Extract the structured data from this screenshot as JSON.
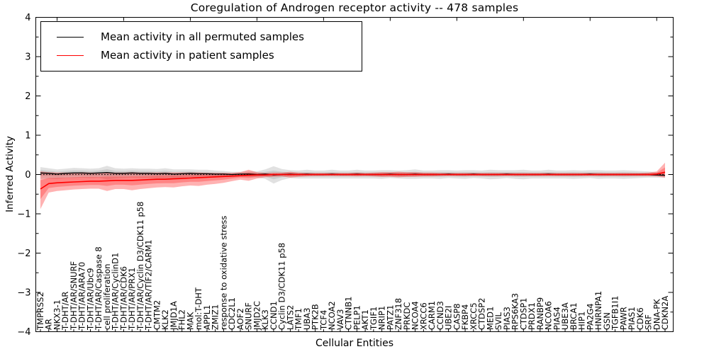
{
  "chart_data": {
    "type": "line",
    "title": "Coregulation of Androgen receptor activity -- 478 samples",
    "xlabel": "Cellular Entities",
    "ylabel": "Inferred Activity",
    "ylim": [
      -4,
      4
    ],
    "ytick_labels": [
      "−4",
      "−3",
      "−2",
      "−1",
      "0",
      "1",
      "2",
      "3",
      "4"
    ],
    "yticks": [
      -4,
      -3,
      -2,
      -1,
      0,
      1,
      2,
      3,
      4
    ],
    "minor_ytick_step": 0.5,
    "grid": false,
    "legend_position": "upper-left",
    "legend": [
      {
        "label": "Mean activity in all permuted samples",
        "color": "#000000"
      },
      {
        "label": "Mean activity in patient samples",
        "color": "#ff0000"
      }
    ],
    "zero_line": {
      "y": 0,
      "style": "dotted",
      "color": "#000000"
    },
    "band_inner_scale": 0.5,
    "colors": {
      "permuted_line": "#000000",
      "patient_line": "#ff0000",
      "permuted_band": "#777777",
      "patient_band": "#ff0000"
    },
    "categories": [
      "TMPRSS2",
      "AR",
      "NKX3-1",
      "T-DHT/AR",
      "T-DHT/AR/SNURF",
      "T-DHT/AR/ARA70",
      "T-DHT/AR/Ubc9",
      "T-DHT/AR/Caspase 8",
      "cell proliferation",
      "T-DHT/AR/CyclinD1",
      "T-DHT/AR/CDK6",
      "T-DHT/AR/PRX1",
      "T-DHT/AR/Cyclin D3/CDK11 p58",
      "T-DHT/AR/TIF2/CARM1",
      "CMTM2",
      "KLK2",
      "JMJD1A",
      "FHL2",
      "MAK",
      "mol:T-DHT",
      "APPL1",
      "ZMIZ1",
      "response to oxidative stress",
      "CDC2L1",
      "AOF2",
      "SNURF",
      "JMJD2C",
      "KLK3",
      "CCND1",
      "Cyclin D3/CDK11 p58",
      "LATS2",
      "TMF1",
      "UBA3",
      "PTK2B",
      "TCF4",
      "NCOA2",
      "VAV3",
      "CTNNB1",
      "PELP1",
      "AKT1",
      "TGIF1",
      "NRIP1",
      "PATZ1",
      "ZNF318",
      "PRKDC",
      "NCOA4",
      "XRCC6",
      "CARM1",
      "CCND3",
      "UBE2I",
      "CASP8",
      "FKBP4",
      "XRCC5",
      "CTDSP2",
      "MED1",
      "SVIL",
      "PIAS3",
      "RPS6KA3",
      "CTDSP1",
      "PRDX1",
      "RANBP9",
      "NCOA6",
      "PIAS4",
      "UBE3A",
      "BRCA1",
      "HIP1",
      "PA2G4",
      "HNRNPA1",
      "GSN",
      "TGFB1I1",
      "PAWR",
      "PIAS1",
      "CDK6",
      "SRF",
      "DNA-PK",
      "CDKN2A"
    ],
    "series": [
      {
        "name": "Mean activity in all permuted samples",
        "values": [
          0.04,
          0.03,
          0.01,
          0.03,
          0.04,
          0.04,
          0.03,
          0.04,
          0.05,
          0.03,
          0.03,
          0.04,
          0.03,
          0.03,
          0.02,
          0.03,
          0.01,
          0.02,
          0.03,
          0.02,
          0.02,
          0.01,
          0.01,
          0.0,
          0.01,
          0.01,
          0.0,
          0.01,
          -0.01,
          0.0,
          0.01,
          0.0,
          0.01,
          0.0,
          0.0,
          0.01,
          0.0,
          0.0,
          0.01,
          0.0,
          0.0,
          0.0,
          0.01,
          0.0,
          0.0,
          0.01,
          0.0,
          0.0,
          0.0,
          0.01,
          0.0,
          0.0,
          0.01,
          0.0,
          0.0,
          0.0,
          0.01,
          0.0,
          0.0,
          0.0,
          0.0,
          0.01,
          0.0,
          0.0,
          0.0,
          0.0,
          0.01,
          0.0,
          0.0,
          0.0,
          0.0,
          0.0,
          0.0,
          0.0,
          -0.01,
          -0.02
        ]
      },
      {
        "name": "Mean activity in patient samples",
        "values": [
          -0.37,
          -0.23,
          -0.21,
          -0.2,
          -0.19,
          -0.18,
          -0.17,
          -0.17,
          -0.16,
          -0.15,
          -0.15,
          -0.15,
          -0.14,
          -0.13,
          -0.12,
          -0.12,
          -0.11,
          -0.1,
          -0.09,
          -0.08,
          -0.07,
          -0.06,
          -0.05,
          -0.04,
          -0.03,
          -0.02,
          -0.01,
          -0.01,
          0.0,
          0.0,
          0.0,
          0.0,
          0.0,
          0.0,
          0.0,
          0.0,
          0.0,
          0.0,
          0.0,
          0.0,
          0.0,
          0.0,
          0.0,
          0.0,
          0.0,
          0.0,
          0.0,
          0.0,
          0.0,
          0.0,
          0.0,
          0.0,
          0.0,
          0.0,
          0.0,
          0.0,
          0.0,
          0.0,
          0.0,
          0.0,
          0.0,
          0.0,
          0.0,
          0.0,
          0.0,
          0.0,
          0.0,
          0.0,
          0.0,
          0.0,
          0.0,
          0.0,
          0.0,
          0.0,
          0.01,
          0.06
        ]
      }
    ],
    "permuted_band_half_width": [
      0.15,
      0.13,
      0.12,
      0.12,
      0.13,
      0.12,
      0.12,
      0.12,
      0.17,
      0.13,
      0.12,
      0.12,
      0.12,
      0.12,
      0.12,
      0.13,
      0.12,
      0.11,
      0.1,
      0.1,
      0.1,
      0.09,
      0.08,
      0.07,
      0.06,
      0.07,
      0.08,
      0.12,
      0.22,
      0.14,
      0.1,
      0.1,
      0.11,
      0.1,
      0.1,
      0.11,
      0.1,
      0.1,
      0.11,
      0.1,
      0.1,
      0.11,
      0.1,
      0.1,
      0.11,
      0.12,
      0.1,
      0.1,
      0.11,
      0.1,
      0.1,
      0.11,
      0.1,
      0.1,
      0.12,
      0.11,
      0.1,
      0.11,
      0.12,
      0.1,
      0.1,
      0.11,
      0.1,
      0.1,
      0.11,
      0.1,
      0.1,
      0.11,
      0.1,
      0.1,
      0.11,
      0.1,
      0.09,
      0.08,
      0.07,
      0.06
    ],
    "patient_band_lo": [
      -0.88,
      -0.46,
      -0.42,
      -0.4,
      -0.38,
      -0.37,
      -0.36,
      -0.36,
      -0.42,
      -0.37,
      -0.37,
      -0.4,
      -0.37,
      -0.35,
      -0.33,
      -0.32,
      -0.33,
      -0.3,
      -0.28,
      -0.29,
      -0.26,
      -0.24,
      -0.21,
      -0.17,
      -0.13,
      -0.16,
      -0.1,
      -0.07,
      -0.06,
      -0.05,
      -0.08,
      -0.06,
      -0.05,
      -0.04,
      -0.04,
      -0.04,
      -0.04,
      -0.04,
      -0.05,
      -0.04,
      -0.05,
      -0.06,
      -0.06,
      -0.07,
      -0.06,
      -0.06,
      -0.05,
      -0.05,
      -0.04,
      -0.04,
      -0.04,
      -0.04,
      -0.04,
      -0.04,
      -0.04,
      -0.04,
      -0.04,
      -0.04,
      -0.04,
      -0.04,
      -0.04,
      -0.04,
      -0.04,
      -0.04,
      -0.04,
      -0.04,
      -0.04,
      -0.04,
      -0.04,
      -0.04,
      -0.04,
      -0.04,
      -0.04,
      -0.04,
      -0.05,
      -0.08
    ],
    "patient_band_hi": [
      0.08,
      0.06,
      0.05,
      0.05,
      0.05,
      0.06,
      0.05,
      0.05,
      0.06,
      0.05,
      0.05,
      0.06,
      0.05,
      0.05,
      0.05,
      0.05,
      0.05,
      0.05,
      0.05,
      0.05,
      0.04,
      0.04,
      0.04,
      0.04,
      0.06,
      0.12,
      0.06,
      0.04,
      0.05,
      0.05,
      0.07,
      0.05,
      0.04,
      0.04,
      0.04,
      0.04,
      0.04,
      0.04,
      0.05,
      0.04,
      0.05,
      0.06,
      0.06,
      0.07,
      0.06,
      0.06,
      0.05,
      0.05,
      0.04,
      0.04,
      0.04,
      0.04,
      0.04,
      0.04,
      0.04,
      0.04,
      0.04,
      0.04,
      0.04,
      0.04,
      0.04,
      0.04,
      0.04,
      0.04,
      0.04,
      0.04,
      0.04,
      0.04,
      0.04,
      0.04,
      0.04,
      0.04,
      0.04,
      0.05,
      0.08,
      0.3
    ]
  }
}
